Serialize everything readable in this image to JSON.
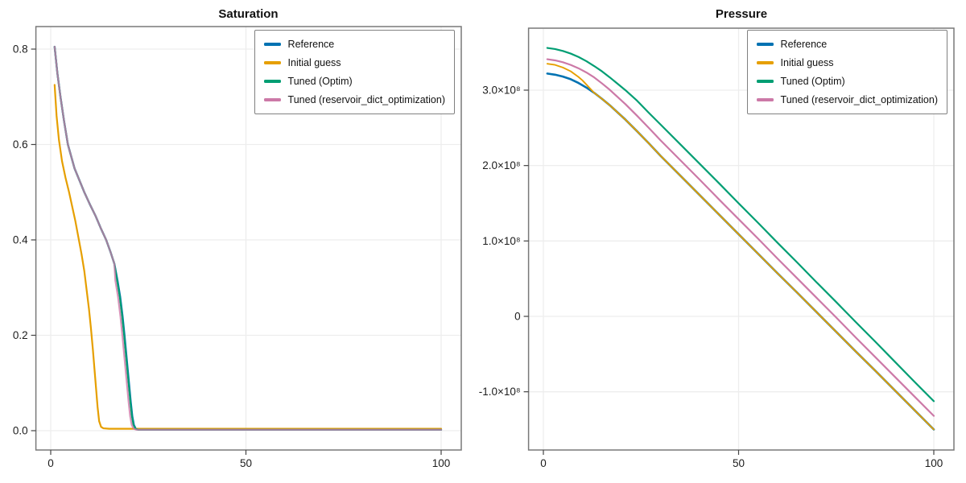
{
  "figure": {
    "background": "#ffffff",
    "left_plot_title": "Saturation",
    "right_plot_title": "Pressure"
  },
  "palette": {
    "reference_blue": "#0072B2",
    "initial_guess_orange": "#E69F00",
    "tuned_optim_green": "#009E73",
    "tuned_dict_pink": "#CC79A7",
    "grid": "#EDEDED",
    "spine": "#787878",
    "tick_text": "#1c1c1c"
  },
  "chart_data": [
    {
      "type": "line",
      "title": "Saturation",
      "xlabel": "",
      "ylabel": "",
      "xlim": [
        -3.8,
        105.2
      ],
      "ylim": [
        -0.0405,
        0.847
      ],
      "grid": true,
      "legend_position": "top-right",
      "xticks": {
        "values": [
          0,
          50,
          100
        ],
        "labels": [
          "0",
          "50",
          "100"
        ]
      },
      "yticks": {
        "values": [
          0.0,
          0.2,
          0.4,
          0.6,
          0.8
        ],
        "labels": [
          "0.0",
          "0.2",
          "0.4",
          "0.6",
          "0.8"
        ]
      },
      "series": [
        {
          "name": "Reference",
          "color": "#0072B2",
          "x": [
            1,
            1.7,
            2.5,
            3.4,
            4.4,
            6.1,
            8.6,
            10,
            11.5,
            12.8,
            14.2,
            15.3,
            16.3,
            17.1,
            17.8,
            18.4,
            18.9,
            19.3,
            19.7,
            20.1,
            20.5,
            20.9,
            21.3,
            21.8,
            22.5,
            25,
            50,
            100
          ],
          "y": [
            0.805,
            0.75,
            0.7,
            0.65,
            0.6,
            0.55,
            0.5,
            0.475,
            0.45,
            0.425,
            0.4,
            0.375,
            0.35,
            0.315,
            0.28,
            0.24,
            0.2,
            0.165,
            0.13,
            0.095,
            0.06,
            0.03,
            0.012,
            0.004,
            0.002,
            0.002,
            0.002,
            0.002
          ]
        },
        {
          "name": "Initial guess",
          "color": "#E69F00",
          "x": [
            1,
            1.5,
            2.1,
            2.9,
            3.8,
            4.7,
            5.5,
            6.3,
            7.1,
            7.9,
            8.6,
            9.2,
            9.8,
            10.3,
            10.8,
            11.2,
            11.6,
            12,
            12.4,
            12.9,
            13.5,
            15,
            25,
            50,
            100
          ],
          "y": [
            0.725,
            0.66,
            0.61,
            0.565,
            0.53,
            0.5,
            0.47,
            0.44,
            0.405,
            0.37,
            0.335,
            0.295,
            0.255,
            0.215,
            0.17,
            0.13,
            0.09,
            0.05,
            0.02,
            0.008,
            0.005,
            0.004,
            0.004,
            0.004,
            0.004
          ]
        },
        {
          "name": "Tuned (Optim)",
          "color": "#009E73",
          "x": [
            1,
            1.7,
            2.5,
            3.4,
            4.4,
            6.1,
            8.6,
            10,
            11.5,
            12.8,
            14.2,
            15.3,
            16.3,
            17.0,
            17.7,
            18.3,
            18.8,
            19.2,
            19.6,
            20.0,
            20.4,
            20.8,
            21.2,
            21.7,
            22.4,
            25,
            50,
            100
          ],
          "y": [
            0.805,
            0.75,
            0.7,
            0.65,
            0.6,
            0.55,
            0.5,
            0.475,
            0.45,
            0.425,
            0.4,
            0.375,
            0.35,
            0.315,
            0.28,
            0.24,
            0.2,
            0.165,
            0.13,
            0.095,
            0.06,
            0.03,
            0.012,
            0.004,
            0.002,
            0.002,
            0.002,
            0.002
          ]
        },
        {
          "name": "Tuned (reservoir_dict_optimization)",
          "color": "#CC79A7",
          "x": [
            1,
            1.7,
            2.5,
            3.4,
            4.4,
            6.1,
            8.6,
            10,
            11.5,
            12.8,
            14.2,
            15.3,
            16.3,
            16.55,
            17.25,
            17.85,
            18.35,
            18.75,
            19.15,
            19.55,
            19.95,
            20.35,
            20.75,
            21.25,
            21.95,
            25,
            50,
            100
          ],
          "y": [
            0.805,
            0.75,
            0.7,
            0.65,
            0.6,
            0.55,
            0.5,
            0.475,
            0.45,
            0.425,
            0.4,
            0.375,
            0.35,
            0.315,
            0.28,
            0.24,
            0.2,
            0.165,
            0.13,
            0.095,
            0.06,
            0.03,
            0.012,
            0.004,
            0.002,
            0.002,
            0.002,
            0.002
          ]
        }
      ]
    },
    {
      "type": "line",
      "title": "Pressure",
      "xlabel": "",
      "ylabel": "",
      "xlim": [
        -3.8,
        105.2
      ],
      "ylim": [
        -177200000.0,
        382200000.0
      ],
      "grid": true,
      "legend_position": "top-right",
      "xticks": {
        "values": [
          0,
          50,
          100
        ],
        "labels": [
          "0",
          "50",
          "100"
        ]
      },
      "yticks": {
        "values": [
          -100000000.0,
          0,
          100000000.0,
          200000000.0,
          300000000.0
        ],
        "labels": [
          "-1.0×10⁸",
          "0",
          "1.0×10⁸",
          "2.0×10⁸",
          "3.0×10⁸"
        ]
      },
      "series": [
        {
          "name": "Reference",
          "color": "#0072B2",
          "x": [
            1,
            3,
            5,
            7,
            9,
            11,
            13,
            15,
            17,
            19,
            21,
            24,
            27,
            30,
            35,
            40,
            45,
            50,
            55,
            60,
            65,
            70,
            75,
            80,
            85,
            90,
            95,
            100
          ],
          "y": [
            322000000.0,
            320500000.0,
            318000000.0,
            314500000.0,
            309500000.0,
            303500000.0,
            296500000.0,
            288500000.0,
            280000000.0,
            270500000.0,
            261000000.0,
            245500000.0,
            229500000.0,
            213000000.0,
            187000000.0,
            161000000.0,
            135000000.0,
            109000000.0,
            83000000.0,
            57000000.0,
            31500000.0,
            5500000.0,
            -20500000.0,
            -46500000.0,
            -72000000.0,
            -98000000.0,
            -124000000.0,
            -150000000.0
          ]
        },
        {
          "name": "Initial guess",
          "color": "#E69F00",
          "x": [
            1,
            3,
            5,
            7,
            9,
            10,
            11,
            12,
            13,
            15,
            17,
            19,
            21,
            24,
            27,
            30,
            35,
            40,
            45,
            50,
            55,
            60,
            65,
            70,
            75,
            80,
            85,
            90,
            95,
            100
          ],
          "y": [
            335000000.0,
            333500000.0,
            330000000.0,
            325000000.0,
            317500000.0,
            313000000.0,
            307500000.0,
            302000000.0,
            296500000.0,
            288500000.0,
            280000000.0,
            270500000.0,
            261000000.0,
            245500000.0,
            229500000.0,
            213000000.0,
            187000000.0,
            161000000.0,
            135000000.0,
            109000000.0,
            83000000.0,
            57000000.0,
            31500000.0,
            5500000.0,
            -20500000.0,
            -46500000.0,
            -72000000.0,
            -98000000.0,
            -124000000.0,
            -150000000.0
          ]
        },
        {
          "name": "Tuned (Optim)",
          "color": "#009E73",
          "x": [
            1,
            3,
            5,
            7,
            9,
            11,
            13,
            15,
            17,
            19,
            21,
            24,
            27,
            30,
            35,
            40,
            45,
            50,
            55,
            60,
            65,
            70,
            75,
            80,
            85,
            90,
            95,
            100
          ],
          "y": [
            356000000.0,
            354500000.0,
            352000000.0,
            348500000.0,
            344000000.0,
            338500000.0,
            332000000.0,
            325000000.0,
            317000000.0,
            308500000.0,
            300000000.0,
            286000000.0,
            270000000.0,
            254500000.0,
            228500000.0,
            202500000.0,
            176500000.0,
            150000000.0,
            124000000.0,
            97500000.0,
            71500000.0,
            45000000.0,
            19000000.0,
            -7500000.0,
            -33500000.0,
            -60000000.0,
            -86500000.0,
            -112500000.0
          ]
        },
        {
          "name": "Tuned (reservoir_dict_optimization)",
          "color": "#CC79A7",
          "x": [
            1,
            3,
            5,
            7,
            9,
            11,
            13,
            15,
            17,
            19,
            21,
            24,
            27,
            30,
            35,
            40,
            45,
            50,
            55,
            60,
            65,
            70,
            75,
            80,
            85,
            90,
            95,
            100
          ],
          "y": [
            341000000.0,
            339500000.0,
            337000000.0,
            333500000.0,
            329000000.0,
            323500000.0,
            317000000.0,
            309000000.0,
            300500000.0,
            291000000.0,
            281500000.0,
            266000000.0,
            250000000.0,
            233500000.0,
            207500000.0,
            181500000.0,
            155000000.0,
            129000000.0,
            103000000.0,
            76500000.0,
            50500000.0,
            24500000.0,
            -1500000.0,
            -28000000.0,
            -54000000.0,
            -80000000.0,
            -106000000.0,
            -132000000.0
          ]
        }
      ]
    }
  ]
}
